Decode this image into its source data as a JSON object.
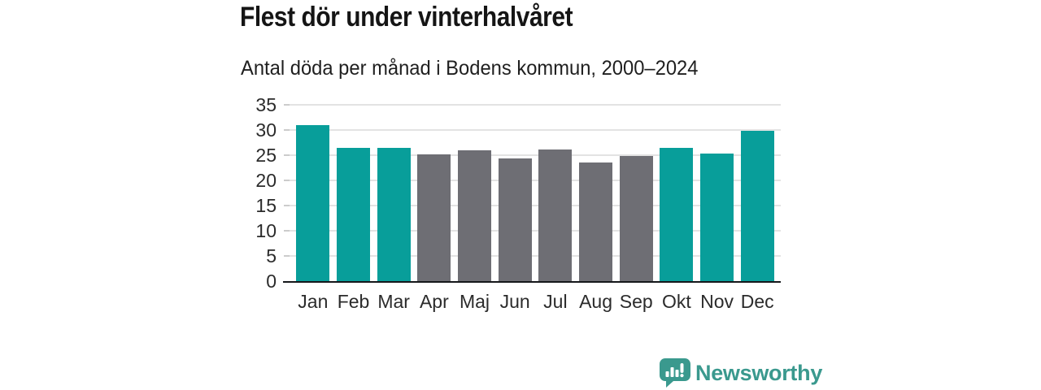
{
  "header": {
    "title": "Flest dör under vinterhalvåret",
    "subtitle": "Antal döda per månad i Bodens kommun, 2000–2024"
  },
  "chart_data": {
    "type": "bar",
    "title": "Flest dör under vinterhalvåret",
    "subtitle": "Antal döda per månad i Bodens kommun, 2000–2024",
    "categories": [
      "Jan",
      "Feb",
      "Mar",
      "Apr",
      "Maj",
      "Jun",
      "Jul",
      "Aug",
      "Sep",
      "Okt",
      "Nov",
      "Dec"
    ],
    "values": [
      31.0,
      26.5,
      26.5,
      25.2,
      26.0,
      24.4,
      26.2,
      23.6,
      24.9,
      26.4,
      25.4,
      29.8
    ],
    "bar_groups": [
      "winter",
      "winter",
      "winter",
      "summer",
      "summer",
      "summer",
      "summer",
      "summer",
      "summer",
      "winter",
      "winter",
      "winter"
    ],
    "group_colors": {
      "winter": "#089e9a",
      "summer": "#6e6e74"
    },
    "xlabel": "",
    "ylabel": "",
    "ylim": [
      0,
      35
    ],
    "yticks": [
      0,
      5,
      10,
      15,
      20,
      25,
      30,
      35
    ],
    "grid": true,
    "legend": "none"
  },
  "branding": {
    "name": "Newsworthy",
    "color": "#3a998e",
    "icon": "newsworthy-logo-icon"
  }
}
